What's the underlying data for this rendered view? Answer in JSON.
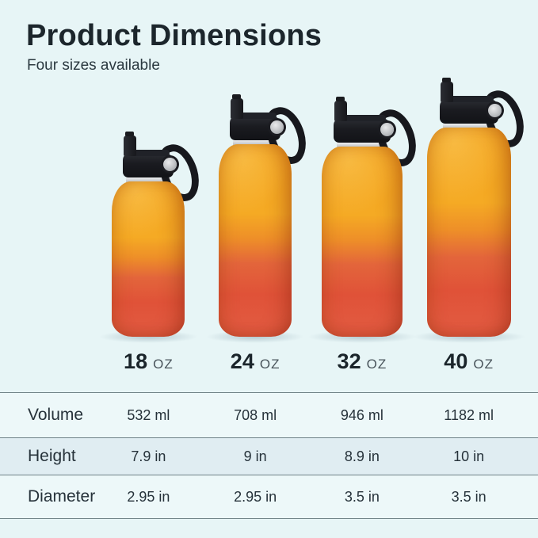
{
  "header": {
    "title": "Product Dimensions",
    "subtitle": "Four sizes available"
  },
  "sizes": [
    {
      "value": "18",
      "unit": "OZ"
    },
    {
      "value": "24",
      "unit": "OZ"
    },
    {
      "value": "32",
      "unit": "OZ"
    },
    {
      "value": "40",
      "unit": "OZ"
    }
  ],
  "table": {
    "rows": [
      {
        "label": "Volume",
        "values": [
          "532 ml",
          "708 ml",
          "946 ml",
          "1182 ml"
        ]
      },
      {
        "label": "Height",
        "values": [
          "7.9 in",
          "9 in",
          "8.9 in",
          "10 in"
        ]
      },
      {
        "label": "Diameter",
        "values": [
          "2.95 in",
          "2.95 in",
          "3.5 in",
          "3.5 in"
        ]
      }
    ]
  },
  "colors": {
    "background": "#E7F5F6",
    "bottle_gradient_top": "#F4A51F",
    "bottle_gradient_bottom": "#E05238",
    "cap_black": "#16171B",
    "shaded_row": "#E0EDF2",
    "table_line": "#6F8287"
  }
}
